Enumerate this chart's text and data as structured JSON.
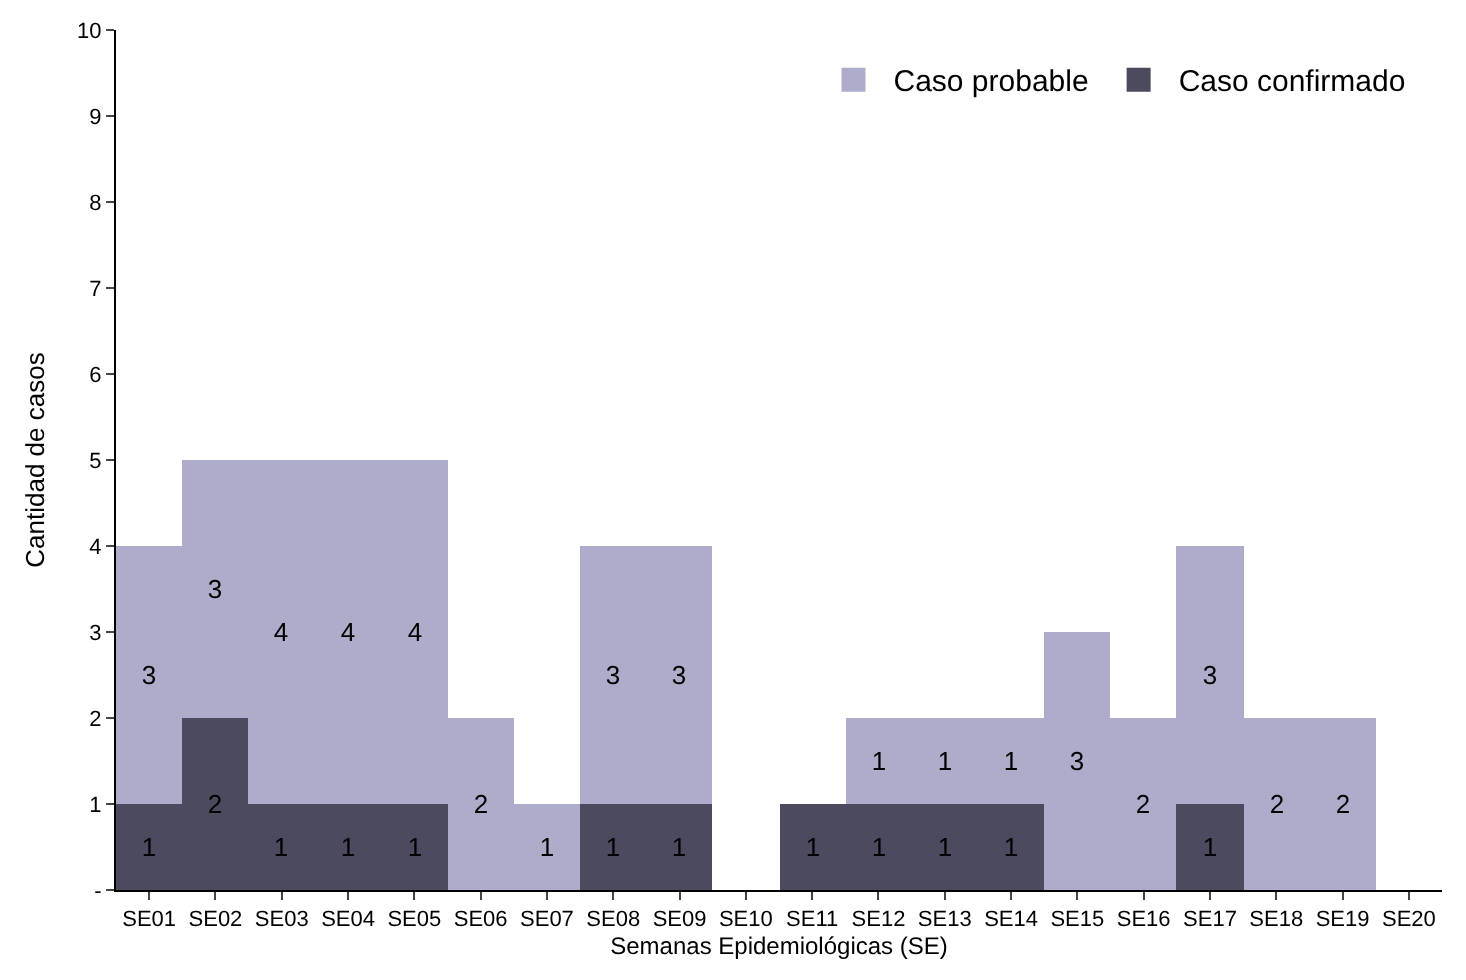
{
  "chart_data": {
    "type": "bar",
    "stacked": true,
    "xlabel": "Semanas Epidemiológicas (SE)",
    "ylabel": "Cantidad de casos",
    "categories": [
      "SE01",
      "SE02",
      "SE03",
      "SE04",
      "SE05",
      "SE06",
      "SE07",
      "SE08",
      "SE09",
      "SE10",
      "SE11",
      "SE12",
      "SE13",
      "SE14",
      "SE15",
      "SE16",
      "SE17",
      "SE18",
      "SE19",
      "SE20"
    ],
    "series": [
      {
        "name": "Caso confirmado",
        "color": "#4b4a5f",
        "values": [
          1,
          2,
          1,
          1,
          1,
          0,
          0,
          1,
          1,
          0,
          1,
          1,
          1,
          1,
          0,
          0,
          1,
          0,
          0,
          0
        ],
        "value_labels": [
          "1",
          "2",
          "1",
          "1",
          "1",
          null,
          null,
          "1",
          "1",
          null,
          "1",
          "1",
          "1",
          "1",
          null,
          null,
          "1",
          null,
          null,
          null
        ]
      },
      {
        "name": "Caso probable",
        "color": "#adadcb",
        "values": [
          3,
          3,
          4,
          4,
          4,
          2,
          1,
          3,
          3,
          0,
          0,
          1,
          1,
          1,
          3,
          2,
          3,
          2,
          2,
          0
        ],
        "value_labels": [
          "3",
          "3",
          "4",
          "4",
          "4",
          "2",
          "1",
          "3",
          "3",
          null,
          null,
          "1",
          "1",
          "1",
          "3",
          "2",
          "3",
          "2",
          "2",
          null
        ]
      }
    ],
    "ylim": [
      0,
      10
    ],
    "yticks": [
      {
        "value": 0,
        "label": "-"
      },
      1,
      2,
      3,
      4,
      5,
      6,
      7,
      8,
      9,
      10
    ],
    "grid": false,
    "legend": "top right"
  }
}
